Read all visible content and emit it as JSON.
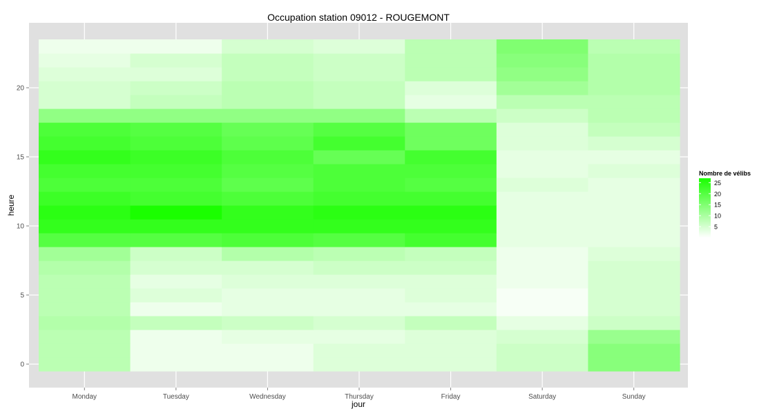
{
  "chart_data": {
    "type": "heatmap",
    "title": "Occupation station 09012 - ROUGEMONT",
    "xlabel": "jour",
    "ylabel": "heure",
    "x_categories": [
      "Monday",
      "Tuesday",
      "Wednesday",
      "Thursday",
      "Friday",
      "Saturday",
      "Sunday"
    ],
    "y_range": [
      -0.5,
      23.5
    ],
    "y_ticks": [
      0,
      5,
      10,
      15,
      20
    ],
    "grid": true,
    "legend": {
      "title": "Nombre de vélibs",
      "position": "right",
      "ticks": [
        5,
        10,
        15,
        20,
        25
      ],
      "min": 0,
      "max": 27,
      "low_color": "#ffffff",
      "high_color": "#1aff00"
    },
    "colors": {
      "panel_background": "#e0e0e0",
      "gridline": "#ffffff",
      "axis_text": "#4d4d4d"
    },
    "values": [
      [
        8,
        2,
        2,
        4,
        4,
        6,
        14
      ],
      [
        8,
        2,
        2,
        4,
        4,
        6,
        14
      ],
      [
        8,
        2,
        3,
        3,
        4,
        5,
        12
      ],
      [
        9,
        7,
        6,
        5,
        7,
        3,
        6
      ],
      [
        8,
        2,
        3,
        3,
        3,
        1,
        5
      ],
      [
        8,
        4,
        3,
        3,
        4,
        1,
        5
      ],
      [
        8,
        3,
        4,
        4,
        4,
        2,
        5
      ],
      [
        9,
        5,
        5,
        6,
        6,
        2,
        5
      ],
      [
        11,
        6,
        9,
        8,
        7,
        2,
        4
      ],
      [
        20,
        20,
        21,
        20,
        22,
        3,
        3
      ],
      [
        24,
        24,
        24,
        24,
        24,
        3,
        3
      ],
      [
        25,
        27,
        24,
        25,
        25,
        3,
        3
      ],
      [
        23,
        22,
        21,
        22,
        22,
        3,
        3
      ],
      [
        21,
        21,
        19,
        21,
        20,
        4,
        3
      ],
      [
        22,
        22,
        20,
        21,
        21,
        3,
        4
      ],
      [
        24,
        23,
        21,
        18,
        22,
        3,
        3
      ],
      [
        22,
        21,
        19,
        22,
        17,
        4,
        5
      ],
      [
        21,
        20,
        18,
        20,
        17,
        4,
        7
      ],
      [
        13,
        13,
        13,
        13,
        8,
        6,
        8
      ],
      [
        5,
        7,
        8,
        7,
        3,
        8,
        8
      ],
      [
        5,
        6,
        8,
        7,
        4,
        11,
        9
      ],
      [
        4,
        4,
        7,
        6,
        8,
        13,
        9
      ],
      [
        3,
        5,
        7,
        6,
        8,
        14,
        9
      ],
      [
        2,
        2,
        5,
        4,
        8,
        15,
        8
      ]
    ]
  }
}
